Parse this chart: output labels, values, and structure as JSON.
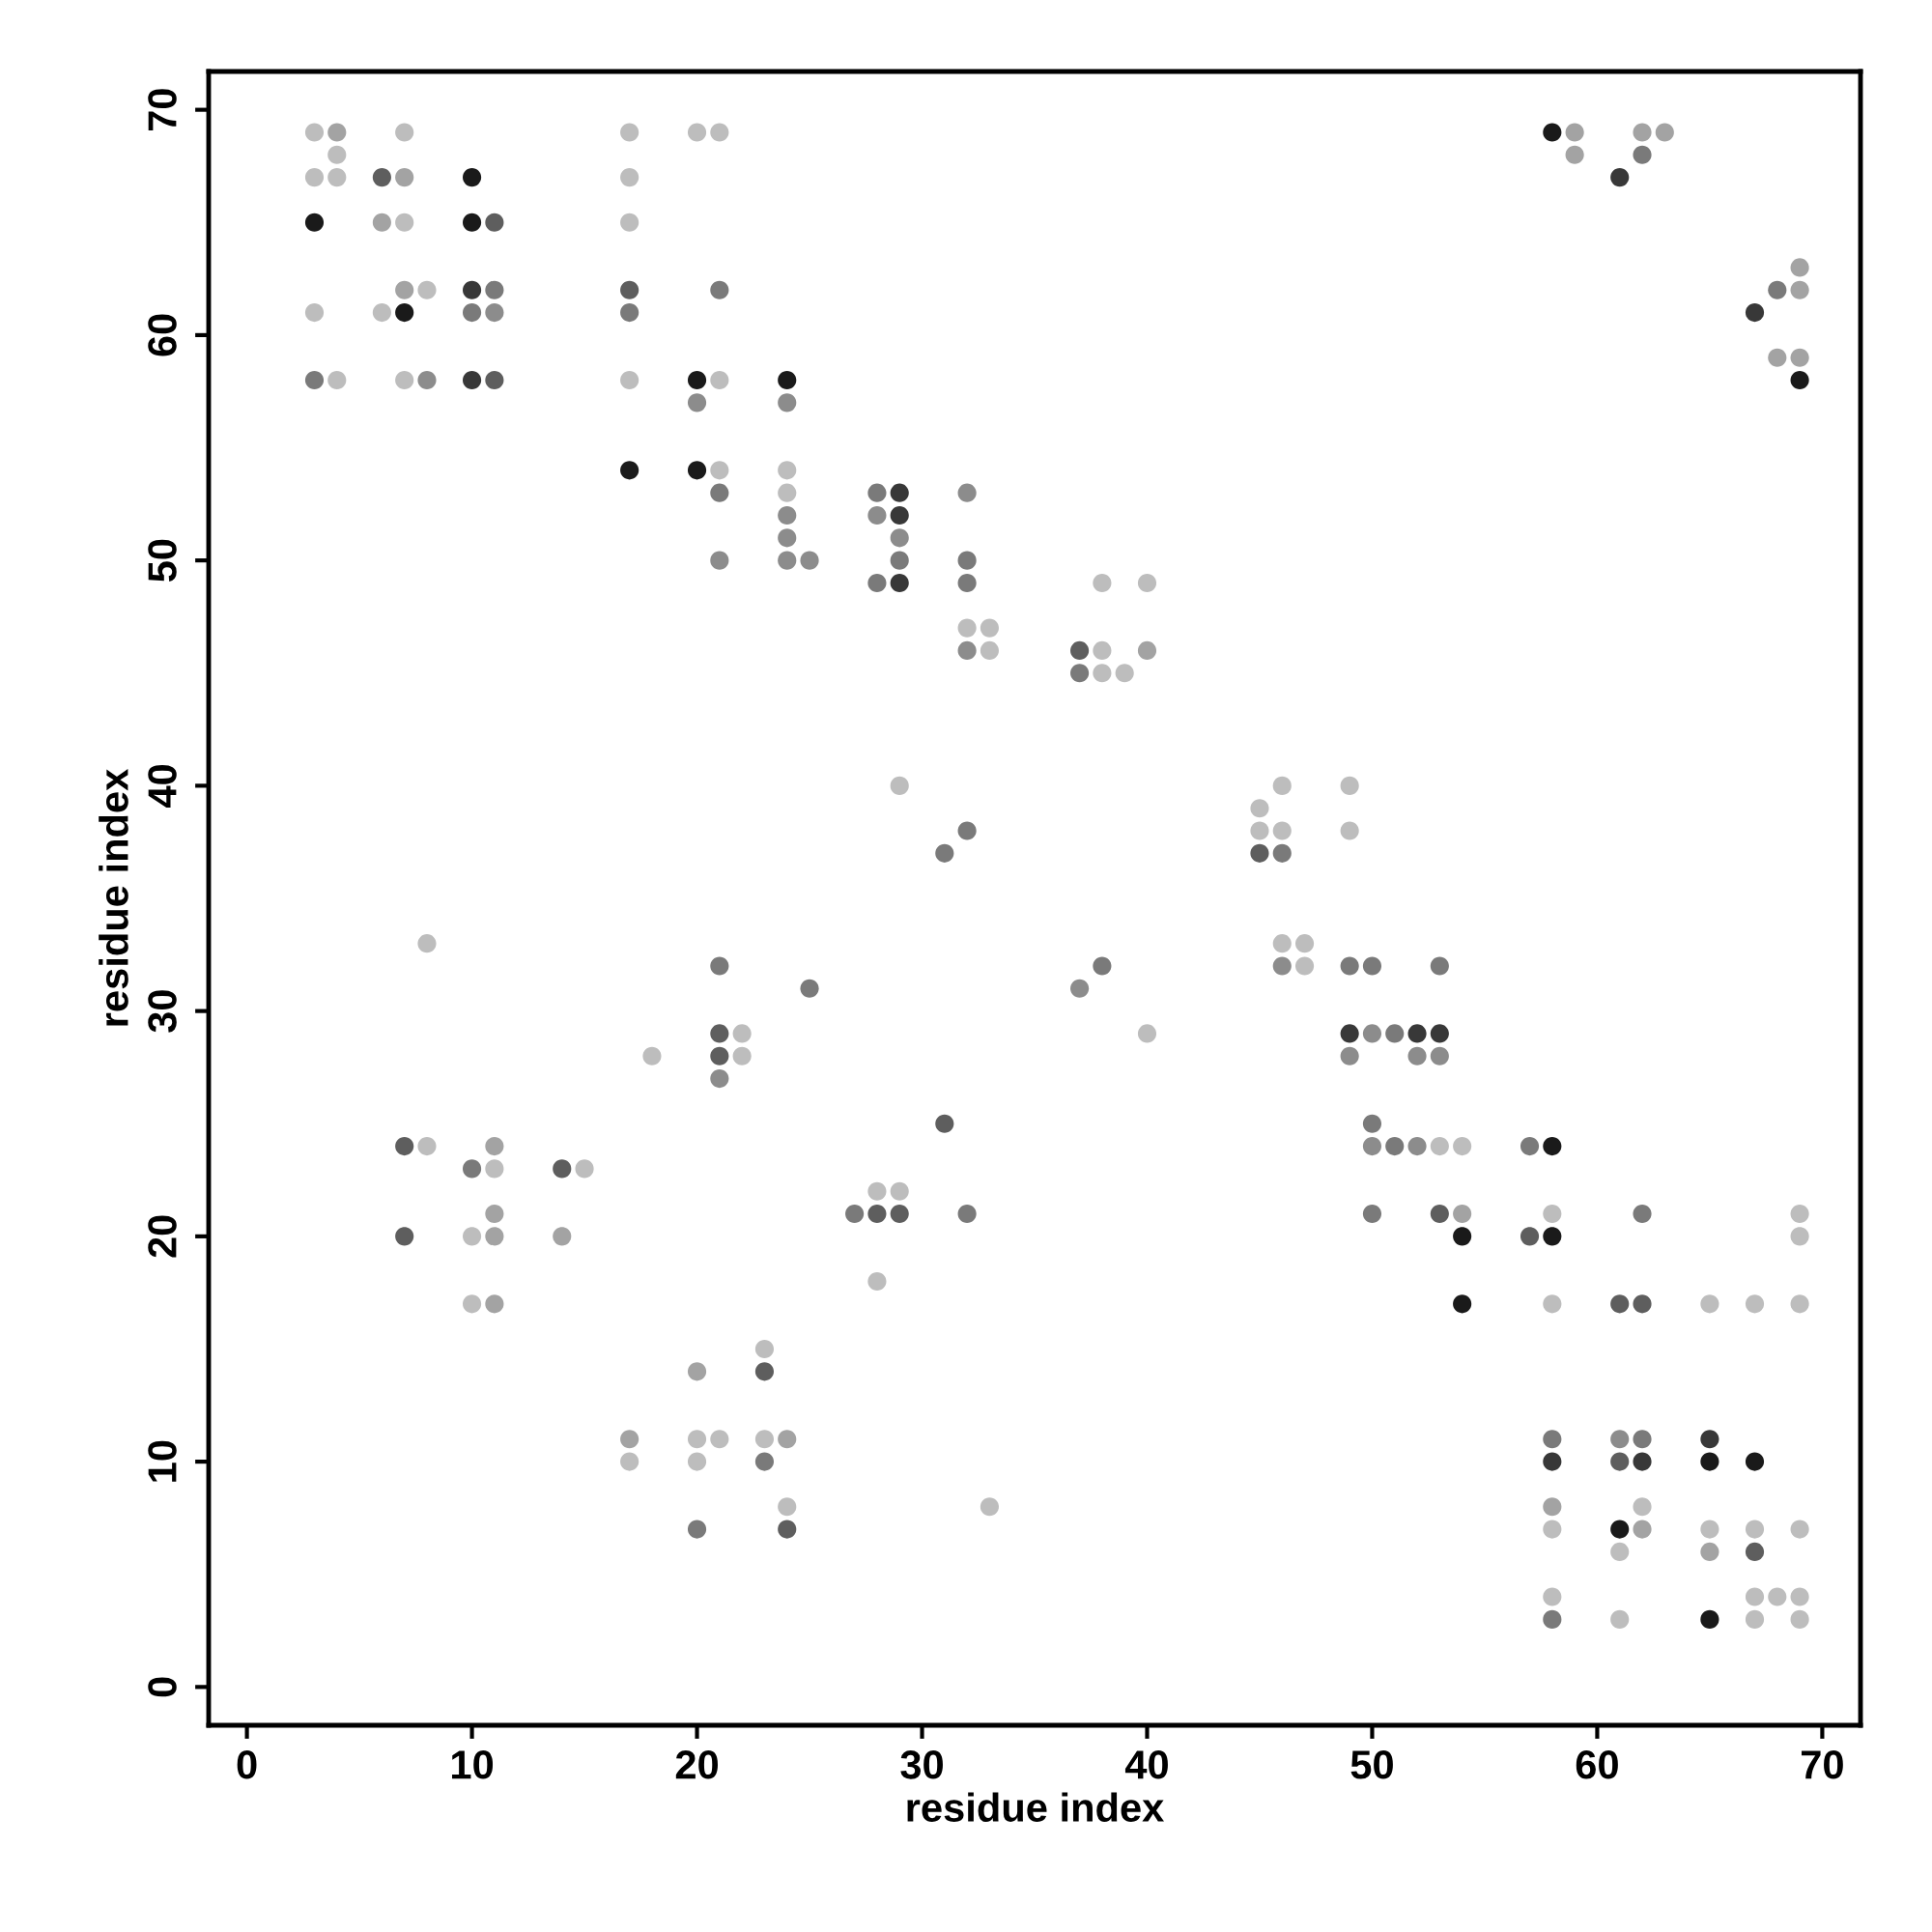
{
  "chart_data": {
    "type": "scatter",
    "xlabel": "residue index",
    "ylabel": "residue index",
    "xlim": [
      -1.7,
      71.7
    ],
    "ylim": [
      -1.7,
      71.7
    ],
    "xticks": [
      0,
      10,
      20,
      30,
      40,
      50,
      60,
      70
    ],
    "yticks": [
      0,
      10,
      20,
      30,
      40,
      50,
      60,
      70
    ],
    "marker": "circle",
    "series": [
      {
        "color": "#1a1a1a",
        "x": [
          3,
          7,
          10,
          10,
          17,
          20,
          20,
          24,
          54,
          54,
          58,
          58,
          58,
          61,
          65,
          65,
          67,
          69
        ],
        "values": [
          65,
          61,
          67,
          65,
          54,
          58,
          54,
          58,
          20,
          17,
          69,
          24,
          20,
          7,
          10,
          3,
          10,
          58
        ]
      },
      {
        "color": "#383838",
        "x": [
          10,
          10,
          29,
          29,
          29,
          49,
          52,
          53,
          58,
          61,
          62,
          65,
          67
        ],
        "values": [
          62,
          58,
          53,
          52,
          49,
          29,
          29,
          29,
          10,
          67,
          10,
          11,
          61
        ]
      },
      {
        "color": "#5e5e5e",
        "x": [
          6,
          7,
          7,
          11,
          11,
          14,
          17,
          21,
          21,
          23,
          24,
          28,
          29,
          31,
          37,
          45,
          53,
          57,
          61,
          61,
          62,
          67
        ],
        "values": [
          67,
          24,
          20,
          65,
          58,
          23,
          62,
          29,
          28,
          14,
          7,
          21,
          21,
          25,
          46,
          37,
          21,
          20,
          17,
          10,
          17,
          6
        ]
      },
      {
        "color": "#7a7a7a",
        "x": [
          3,
          10,
          10,
          11,
          17,
          20,
          21,
          21,
          21,
          23,
          25,
          27,
          28,
          28,
          29,
          31,
          32,
          32,
          32,
          32,
          37,
          38,
          46,
          49,
          50,
          50,
          50,
          51,
          51,
          53,
          57,
          58,
          58,
          62,
          62,
          62,
          68
        ],
        "values": [
          58,
          61,
          23,
          62,
          61,
          7,
          62,
          53,
          32,
          10,
          31,
          21,
          53,
          49,
          50,
          37,
          50,
          49,
          38,
          21,
          45,
          32,
          37,
          32,
          32,
          25,
          21,
          29,
          24,
          32,
          24,
          11,
          3,
          68,
          21,
          11,
          62
        ]
      },
      {
        "color": "#8c8c8c",
        "x": [
          8,
          11,
          20,
          21,
          21,
          24,
          24,
          24,
          24,
          25,
          28,
          29,
          32,
          32,
          37,
          46,
          49,
          50,
          50,
          52,
          52,
          53,
          61
        ],
        "values": [
          58,
          61,
          57,
          50,
          27,
          57,
          52,
          51,
          50,
          50,
          52,
          51,
          53,
          46,
          31,
          32,
          28,
          29,
          24,
          28,
          24,
          28,
          11
        ]
      },
      {
        "color": "#a3a3a3",
        "x": [
          4,
          6,
          7,
          7,
          11,
          11,
          11,
          11,
          14,
          17,
          20,
          24,
          40,
          54,
          58,
          59,
          59,
          62,
          62,
          63,
          65,
          68,
          69,
          69,
          69
        ],
        "values": [
          69,
          65,
          67,
          62,
          24,
          21,
          20,
          17,
          20,
          11,
          14,
          11,
          46,
          21,
          8,
          69,
          68,
          69,
          7,
          69,
          6,
          59,
          63,
          62,
          59
        ]
      },
      {
        "color": "#bdbdbd",
        "x": [
          3,
          3,
          3,
          4,
          4,
          4,
          6,
          7,
          7,
          7,
          8,
          8,
          8,
          10,
          10,
          11,
          15,
          17,
          17,
          17,
          17,
          17,
          18,
          20,
          20,
          20,
          21,
          21,
          21,
          21,
          22,
          22,
          23,
          23,
          24,
          24,
          24,
          28,
          28,
          29,
          29,
          32,
          33,
          33,
          33,
          38,
          38,
          38,
          39,
          40,
          40,
          45,
          45,
          46,
          46,
          46,
          47,
          47,
          49,
          49,
          53,
          54,
          58,
          58,
          58,
          58,
          61,
          61,
          62,
          65,
          65,
          67,
          67,
          67,
          67,
          68,
          69,
          69,
          69,
          69,
          69,
          69
        ],
        "values": [
          69,
          67,
          61,
          68,
          67,
          58,
          61,
          69,
          65,
          58,
          62,
          33,
          24,
          20,
          17,
          23,
          23,
          69,
          67,
          65,
          58,
          10,
          28,
          69,
          11,
          10,
          69,
          58,
          54,
          11,
          29,
          28,
          15,
          11,
          54,
          53,
          8,
          22,
          18,
          40,
          22,
          47,
          47,
          46,
          8,
          49,
          46,
          45,
          45,
          49,
          29,
          39,
          38,
          40,
          38,
          33,
          33,
          32,
          40,
          38,
          24,
          24,
          21,
          17,
          7,
          4,
          6,
          3,
          8,
          17,
          7,
          17,
          7,
          4,
          3,
          4,
          21,
          20,
          17,
          7,
          4,
          3
        ]
      }
    ]
  }
}
